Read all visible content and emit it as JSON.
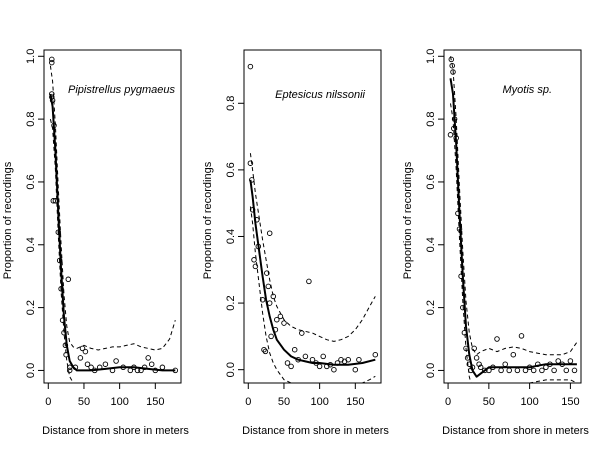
{
  "chart_data": [
    {
      "type": "scatter",
      "title": "Pipistrellus pygmaeus",
      "xlabel": "Distance from shore in meters",
      "ylabel": "Proportion of recordings",
      "xlim": [
        -6,
        186
      ],
      "ylim": [
        -0.04,
        1.02
      ],
      "xticks": [
        0,
        50,
        100,
        150
      ],
      "yticks": [
        0.0,
        0.2,
        0.4,
        0.6,
        0.8,
        1.0
      ],
      "ytick_labels": [
        "0.0",
        "0.2",
        "0.4",
        "0.6",
        "0.8",
        "1.0"
      ],
      "points": [
        [
          5,
          0.99
        ],
        [
          5,
          0.98
        ],
        [
          5,
          0.88
        ],
        [
          5,
          0.87
        ],
        [
          6,
          0.86
        ],
        [
          7,
          0.54
        ],
        [
          8,
          0.78
        ],
        [
          10,
          0.54
        ],
        [
          14,
          0.44
        ],
        [
          16,
          0.35
        ],
        [
          18,
          0.26
        ],
        [
          20,
          0.16
        ],
        [
          22,
          0.12
        ],
        [
          24,
          0.08
        ],
        [
          25,
          0.05
        ],
        [
          28,
          0.29
        ],
        [
          30,
          0.01
        ],
        [
          30,
          0.0
        ],
        [
          38,
          0.01
        ],
        [
          45,
          0.04
        ],
        [
          48,
          0.07
        ],
        [
          52,
          0.06
        ],
        [
          55,
          0.02
        ],
        [
          60,
          0.01
        ],
        [
          65,
          0.0
        ],
        [
          72,
          0.01
        ],
        [
          80,
          0.02
        ],
        [
          90,
          0.0
        ],
        [
          95,
          0.03
        ],
        [
          105,
          0.01
        ],
        [
          115,
          0.0
        ],
        [
          120,
          0.01
        ],
        [
          125,
          0.0
        ],
        [
          130,
          0.0
        ],
        [
          135,
          0.01
        ],
        [
          140,
          0.04
        ],
        [
          145,
          0.02
        ],
        [
          150,
          0.0
        ],
        [
          160,
          0.01
        ],
        [
          178,
          0.0
        ]
      ],
      "series": [
        {
          "name": "fit",
          "style": "solid",
          "x": [
            3,
            6,
            10,
            14,
            18,
            22,
            26,
            30,
            35,
            40,
            50,
            60,
            80,
            100,
            120,
            140,
            160,
            178
          ],
          "y": [
            0.88,
            0.84,
            0.7,
            0.5,
            0.32,
            0.17,
            0.08,
            0.03,
            0.01,
            0.0,
            0.0,
            0.0,
            0.005,
            0.01,
            0.01,
            0.005,
            0.0,
            0.0
          ]
        },
        {
          "name": "upper",
          "style": "dashed",
          "x": [
            3,
            6,
            10,
            14,
            18,
            22,
            26,
            30,
            35,
            40,
            50,
            60,
            70,
            80,
            90,
            100,
            110,
            120,
            130,
            140,
            150,
            160,
            170,
            178
          ],
          "y": [
            0.97,
            0.92,
            0.78,
            0.58,
            0.4,
            0.24,
            0.14,
            0.09,
            0.075,
            0.07,
            0.08,
            0.07,
            0.065,
            0.07,
            0.075,
            0.075,
            0.08,
            0.085,
            0.075,
            0.07,
            0.065,
            0.07,
            0.1,
            0.16
          ]
        },
        {
          "name": "lower",
          "style": "dashed",
          "x": [
            3,
            6,
            10,
            14,
            18,
            22,
            26,
            30,
            35,
            40,
            50,
            60,
            70,
            80,
            90,
            100,
            110,
            120,
            130,
            140,
            150,
            160,
            170,
            178
          ],
          "y": [
            0.8,
            0.77,
            0.64,
            0.43,
            0.25,
            0.12,
            0.03,
            -0.02,
            -0.04,
            -0.04,
            -0.04,
            -0.04,
            -0.04,
            -0.04,
            -0.04,
            -0.04,
            -0.04,
            -0.04,
            -0.04,
            -0.04,
            -0.04,
            -0.04,
            -0.04,
            -0.04
          ]
        }
      ]
    },
    {
      "type": "scatter",
      "title": "Eptesicus nilssonii",
      "xlabel": "Distance from shore in meters",
      "ylabel": "Proportion of recordings",
      "xlim": [
        -6,
        186
      ],
      "ylim": [
        -0.04,
        0.96
      ],
      "xticks": [
        0,
        50,
        100,
        150
      ],
      "yticks": [
        0.0,
        0.2,
        0.4,
        0.6,
        0.8
      ],
      "ytick_labels": [
        "0.0",
        "0.2",
        "0.4",
        "0.6",
        "0.8"
      ],
      "points": [
        [
          3,
          0.91
        ],
        [
          3,
          0.62
        ],
        [
          5,
          0.57
        ],
        [
          6,
          0.48
        ],
        [
          8,
          0.33
        ],
        [
          10,
          0.31
        ],
        [
          12,
          0.45
        ],
        [
          14,
          0.37
        ],
        [
          20,
          0.21
        ],
        [
          22,
          0.06
        ],
        [
          24,
          0.055
        ],
        [
          26,
          0.29
        ],
        [
          28,
          0.25
        ],
        [
          30,
          0.41
        ],
        [
          30,
          0.2
        ],
        [
          32,
          0.1
        ],
        [
          35,
          0.22
        ],
        [
          38,
          0.12
        ],
        [
          40,
          0.15
        ],
        [
          45,
          0.16
        ],
        [
          50,
          0.14
        ],
        [
          55,
          0.02
        ],
        [
          60,
          0.01
        ],
        [
          65,
          0.06
        ],
        [
          70,
          0.03
        ],
        [
          75,
          0.11
        ],
        [
          80,
          0.04
        ],
        [
          85,
          0.265
        ],
        [
          90,
          0.03
        ],
        [
          95,
          0.02
        ],
        [
          100,
          0.01
        ],
        [
          105,
          0.04
        ],
        [
          110,
          0.01
        ],
        [
          115,
          0.015
        ],
        [
          120,
          0.0
        ],
        [
          125,
          0.02
        ],
        [
          130,
          0.03
        ],
        [
          135,
          0.025
        ],
        [
          140,
          0.03
        ],
        [
          150,
          0.0
        ],
        [
          155,
          0.03
        ],
        [
          178,
          0.045
        ]
      ],
      "series": [
        {
          "name": "fit",
          "style": "solid",
          "x": [
            3,
            6,
            10,
            15,
            20,
            25,
            30,
            35,
            40,
            50,
            60,
            70,
            80,
            90,
            100,
            120,
            140,
            160,
            178
          ],
          "y": [
            0.57,
            0.52,
            0.44,
            0.36,
            0.28,
            0.21,
            0.16,
            0.12,
            0.09,
            0.06,
            0.04,
            0.03,
            0.025,
            0.02,
            0.02,
            0.015,
            0.015,
            0.02,
            0.03
          ]
        },
        {
          "name": "upper",
          "style": "dashed",
          "x": [
            3,
            6,
            10,
            15,
            20,
            25,
            30,
            35,
            40,
            50,
            60,
            70,
            80,
            90,
            100,
            110,
            120,
            130,
            140,
            150,
            160,
            170,
            178
          ],
          "y": [
            0.65,
            0.6,
            0.53,
            0.46,
            0.39,
            0.33,
            0.27,
            0.22,
            0.19,
            0.15,
            0.13,
            0.12,
            0.115,
            0.11,
            0.1,
            0.09,
            0.085,
            0.09,
            0.1,
            0.12,
            0.15,
            0.19,
            0.22
          ]
        },
        {
          "name": "lower",
          "style": "dashed",
          "x": [
            3,
            6,
            10,
            15,
            20,
            25,
            30,
            35,
            40,
            50,
            60,
            70,
            80,
            90,
            100,
            110,
            120,
            130,
            140,
            150,
            160,
            170,
            178
          ],
          "y": [
            0.49,
            0.44,
            0.35,
            0.26,
            0.17,
            0.1,
            0.05,
            0.02,
            0.0,
            -0.03,
            -0.04,
            -0.05,
            -0.06,
            -0.06,
            -0.06,
            -0.06,
            -0.06,
            -0.06,
            -0.06,
            -0.05,
            -0.04,
            -0.03,
            -0.02
          ]
        }
      ]
    },
    {
      "type": "scatter",
      "title": "Myotis sp.",
      "xlabel": "Distance from shore in meters",
      "ylabel": "Proportion of recordings",
      "xlim": [
        -5,
        163
      ],
      "ylim": [
        -0.04,
        1.02
      ],
      "xticks": [
        0,
        50,
        100,
        150
      ],
      "yticks": [
        0.0,
        0.2,
        0.4,
        0.6,
        0.8,
        1.0
      ],
      "ytick_labels": [
        "0.0",
        "0.2",
        "0.4",
        "0.6",
        "0.8",
        "1.0"
      ],
      "points": [
        [
          3,
          0.75
        ],
        [
          4,
          0.99
        ],
        [
          5,
          0.97
        ],
        [
          6,
          0.95
        ],
        [
          7,
          0.77
        ],
        [
          8,
          0.8
        ],
        [
          10,
          0.74
        ],
        [
          12,
          0.5
        ],
        [
          14,
          0.45
        ],
        [
          16,
          0.3
        ],
        [
          18,
          0.2
        ],
        [
          20,
          0.12
        ],
        [
          22,
          0.07
        ],
        [
          24,
          0.04
        ],
        [
          26,
          0.02
        ],
        [
          28,
          0.0
        ],
        [
          30,
          0.01
        ],
        [
          32,
          0.07
        ],
        [
          35,
          0.04
        ],
        [
          38,
          0.02
        ],
        [
          40,
          0.01
        ],
        [
          45,
          0.0
        ],
        [
          50,
          0.0
        ],
        [
          55,
          0.01
        ],
        [
          60,
          0.1
        ],
        [
          65,
          0.0
        ],
        [
          70,
          0.02
        ],
        [
          75,
          0.0
        ],
        [
          80,
          0.05
        ],
        [
          85,
          0.0
        ],
        [
          90,
          0.11
        ],
        [
          95,
          0.0
        ],
        [
          100,
          0.01
        ],
        [
          105,
          0.0
        ],
        [
          110,
          0.02
        ],
        [
          115,
          0.0
        ],
        [
          120,
          0.01
        ],
        [
          125,
          0.02
        ],
        [
          130,
          0.0
        ],
        [
          135,
          0.03
        ],
        [
          140,
          0.02
        ],
        [
          145,
          0.0
        ],
        [
          150,
          0.03
        ],
        [
          155,
          0.0
        ]
      ],
      "series": [
        {
          "name": "fit",
          "style": "solid",
          "x": [
            3,
            6,
            10,
            14,
            18,
            22,
            26,
            30,
            35,
            40,
            50,
            60,
            70,
            80,
            90,
            100,
            110,
            120,
            130,
            140,
            150,
            158
          ],
          "y": [
            0.93,
            0.88,
            0.72,
            0.5,
            0.3,
            0.14,
            0.05,
            0.0,
            -0.02,
            -0.01,
            0.01,
            0.01,
            0.01,
            0.01,
            0.01,
            0.01,
            0.015,
            0.02,
            0.02,
            0.02,
            0.02,
            0.02
          ]
        },
        {
          "name": "upper",
          "style": "dashed",
          "x": [
            3,
            6,
            10,
            14,
            18,
            22,
            26,
            30,
            35,
            40,
            50,
            60,
            70,
            80,
            90,
            100,
            110,
            120,
            130,
            140,
            150,
            158
          ],
          "y": [
            1.0,
            0.96,
            0.8,
            0.58,
            0.38,
            0.22,
            0.12,
            0.07,
            0.05,
            0.06,
            0.07,
            0.06,
            0.07,
            0.075,
            0.07,
            0.06,
            0.055,
            0.05,
            0.05,
            0.05,
            0.06,
            0.09
          ]
        },
        {
          "name": "lower",
          "style": "dashed",
          "x": [
            3,
            6,
            10,
            14,
            18,
            22,
            26,
            30,
            35,
            40,
            50,
            60,
            70,
            80,
            90,
            100,
            110,
            120,
            130,
            140,
            150,
            158
          ],
          "y": [
            0.85,
            0.8,
            0.64,
            0.42,
            0.22,
            0.07,
            -0.02,
            -0.06,
            -0.08,
            -0.07,
            -0.06,
            -0.05,
            -0.05,
            -0.05,
            -0.05,
            -0.04,
            -0.035,
            -0.03,
            -0.03,
            -0.03,
            -0.03,
            -0.04
          ]
        }
      ]
    }
  ]
}
